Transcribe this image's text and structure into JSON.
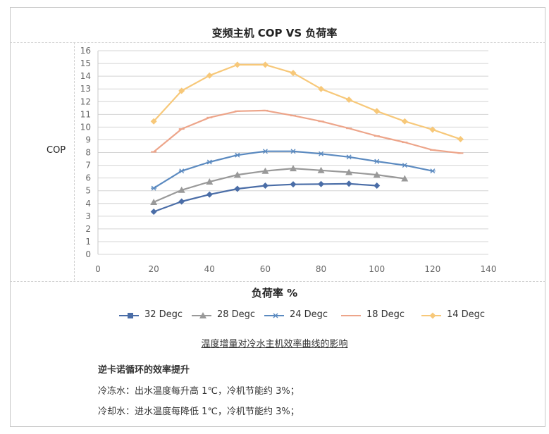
{
  "chart_data": {
    "type": "line",
    "title": "变频主机 COP VS 负荷率",
    "xlabel": "负荷率 %",
    "ylabel": "COP",
    "xlim": [
      0,
      140
    ],
    "ylim": [
      0,
      16
    ],
    "xticks": [
      0,
      20,
      40,
      60,
      80,
      100,
      120,
      140
    ],
    "yticks": [
      0,
      1,
      2,
      3,
      4,
      5,
      6,
      7,
      8,
      9,
      10,
      11,
      12,
      13,
      14,
      15,
      16
    ],
    "grid": true,
    "legend_position": "bottom",
    "series": [
      {
        "name": "32 Degc",
        "color": "#4a6da7",
        "marker": "diamond",
        "x": [
          20,
          30,
          40,
          50,
          60,
          70,
          80,
          90,
          100
        ],
        "y": [
          3.35,
          4.15,
          4.7,
          5.15,
          5.4,
          5.5,
          5.52,
          5.55,
          5.4
        ]
      },
      {
        "name": "28 Degc",
        "color": "#999999",
        "marker": "triangle",
        "x": [
          20,
          30,
          40,
          50,
          60,
          70,
          80,
          90,
          100,
          110
        ],
        "y": [
          4.1,
          5.05,
          5.7,
          6.25,
          6.55,
          6.75,
          6.6,
          6.45,
          6.25,
          5.95
        ]
      },
      {
        "name": "24 Degc",
        "color": "#5b8ac0",
        "marker": "asterisk",
        "x": [
          20,
          30,
          40,
          50,
          60,
          70,
          80,
          90,
          100,
          110,
          120
        ],
        "y": [
          5.2,
          6.55,
          7.25,
          7.8,
          8.1,
          8.1,
          7.9,
          7.65,
          7.3,
          7.0,
          6.55
        ]
      },
      {
        "name": "18 Degc",
        "color": "#eda58a",
        "marker": "dash",
        "x": [
          20,
          30,
          40,
          50,
          60,
          70,
          80,
          90,
          100,
          110,
          120,
          130
        ],
        "y": [
          8.05,
          9.85,
          10.75,
          11.25,
          11.3,
          10.9,
          10.45,
          9.9,
          9.3,
          8.8,
          8.2,
          7.95
        ]
      },
      {
        "name": "14 Degc",
        "color": "#f7c879",
        "marker": "diamond",
        "x": [
          20,
          30,
          40,
          50,
          60,
          70,
          80,
          90,
          100,
          110,
          120,
          130
        ],
        "y": [
          10.45,
          12.85,
          14.05,
          14.9,
          14.9,
          14.25,
          13.0,
          12.15,
          11.25,
          10.45,
          9.8,
          9.05
        ]
      }
    ]
  },
  "caption": "温度增量对冷水主机效率曲线的影响",
  "notes": {
    "heading": "逆卡诺循环的效率提升",
    "line1": "冷冻水：出水温度每升高 1℃，冷机节能约 3%；",
    "line2": "冷却水：进水温度每降低 1℃，冷机节能约 3%；"
  }
}
